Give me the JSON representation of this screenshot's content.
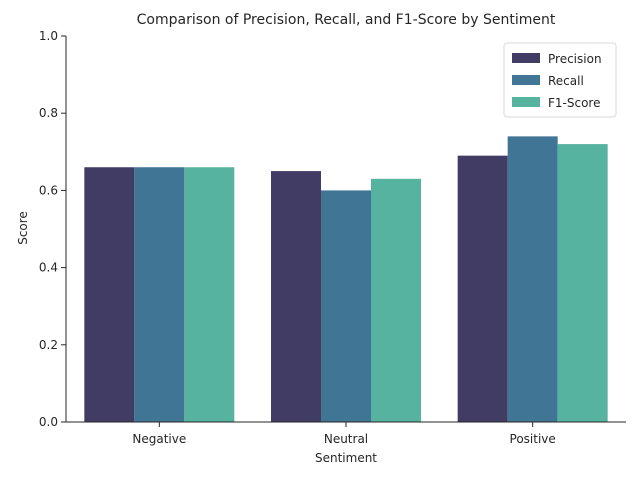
{
  "chart_data": {
    "type": "bar",
    "title": "Comparison of Precision, Recall, and F1-Score by Sentiment",
    "xlabel": "Sentiment",
    "ylabel": "Score",
    "ylim": [
      0,
      1
    ],
    "yticks": [
      "0.0",
      "0.2",
      "0.4",
      "0.6",
      "0.8",
      "1.0"
    ],
    "categories": [
      "Negative",
      "Neutral",
      "Positive"
    ],
    "series": [
      {
        "name": "Precision",
        "color": "#413c63",
        "values": [
          0.66,
          0.65,
          0.69
        ]
      },
      {
        "name": "Recall",
        "color": "#417595",
        "values": [
          0.66,
          0.6,
          0.74
        ]
      },
      {
        "name": "F1-Score",
        "color": "#56b3a0",
        "values": [
          0.66,
          0.63,
          0.72
        ]
      }
    ],
    "legend": "top-right",
    "grid": false
  }
}
